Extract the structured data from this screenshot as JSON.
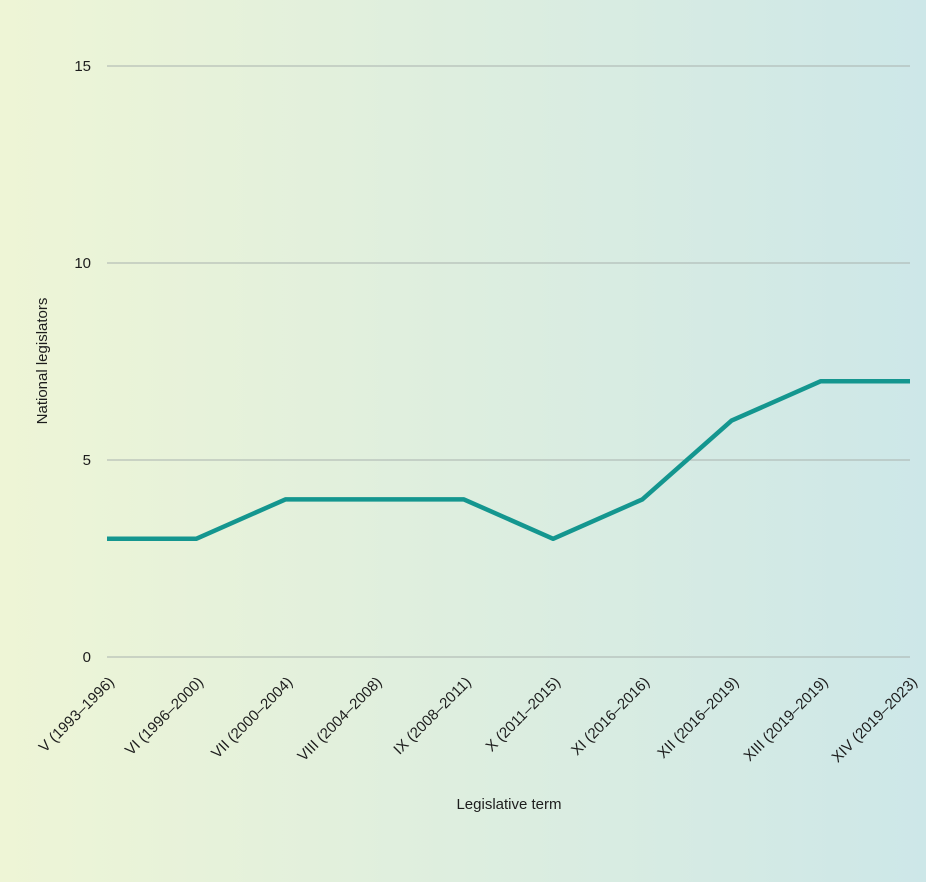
{
  "chart_data": {
    "type": "line",
    "title": "",
    "xlabel": "Legislative term",
    "ylabel": "National legislators",
    "categories": [
      "V (1993–1996)",
      "VI (1996–2000)",
      "VII (2000–2004)",
      "VIII (2004–2008)",
      "IX (2008–2011)",
      "X (2011–2015)",
      "XI (2016–2016)",
      "XII (2016–2019)",
      "XIII (2019–2019)",
      "XIV (2019–2023)"
    ],
    "series": [
      {
        "values": [
          3,
          3,
          4,
          4,
          4,
          3,
          4,
          6,
          7,
          7
        ],
        "color": "#14968f"
      }
    ],
    "ylim": [
      0,
      15
    ],
    "yticks": [
      "0",
      "5",
      "10",
      "15"
    ],
    "grid": true,
    "legend": "none",
    "background_gradient": [
      "#eef5d6",
      "#cde7e8"
    ]
  }
}
